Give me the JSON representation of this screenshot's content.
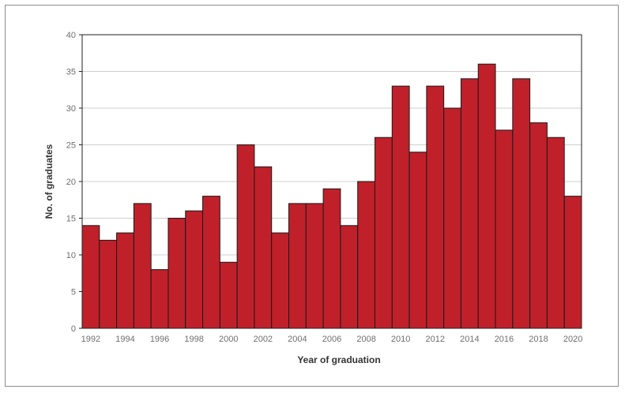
{
  "chart_data": {
    "type": "bar",
    "title": "",
    "xlabel": "Year of graduation",
    "ylabel": "No. of graduates",
    "ylim": [
      0,
      40
    ],
    "yticks": [
      0,
      5,
      10,
      15,
      20,
      25,
      30,
      35,
      40
    ],
    "grid": "horizontal",
    "categories": [
      "1992",
      "1993",
      "1994",
      "1995",
      "1996",
      "1997",
      "1998",
      "1999",
      "2000",
      "2001",
      "2002",
      "2003",
      "2004",
      "2005",
      "2006",
      "2007",
      "2008",
      "2009",
      "2010",
      "2011",
      "2012",
      "2013",
      "2014",
      "2015",
      "2016",
      "2017",
      "2018",
      "2019",
      "2020"
    ],
    "values": [
      14,
      12,
      13,
      17,
      8,
      15,
      16,
      18,
      9,
      25,
      22,
      13,
      17,
      17,
      19,
      14,
      20,
      26,
      33,
      24,
      33,
      30,
      34,
      36,
      27,
      34,
      28,
      26,
      18
    ],
    "xtick_labels": [
      "1992",
      "1994",
      "1996",
      "1998",
      "2000",
      "2002",
      "2004",
      "2006",
      "2008",
      "2010",
      "2012",
      "2014",
      "2016",
      "2018",
      "2020"
    ],
    "bar_color": "#c0202a",
    "bar_edge_color": "#1a1a1a",
    "grid_color": "#cfcfcf"
  }
}
